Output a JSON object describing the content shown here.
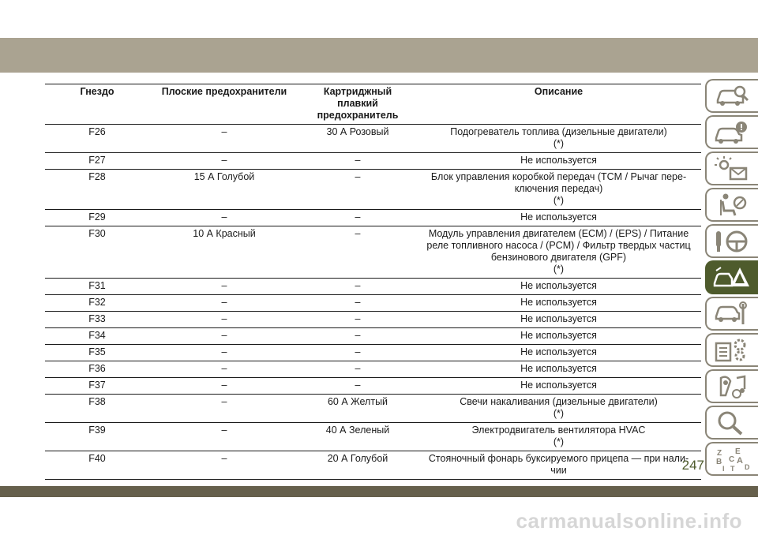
{
  "table": {
    "headers": [
      [
        "Гнездо"
      ],
      [
        "Плоские предохранители"
      ],
      [
        "Картриджный плавкий",
        "предохранитель"
      ],
      [
        "Описание"
      ]
    ],
    "rows": [
      {
        "slot": "F26",
        "flat": "–",
        "cartridge": "30 А Розовый",
        "description": [
          "Подогреватель топлива (дизельные двигатели)",
          "(*)"
        ]
      },
      {
        "slot": "F27",
        "flat": "–",
        "cartridge": "–",
        "description": [
          "Не используется"
        ]
      },
      {
        "slot": "F28",
        "flat": "15 А Голубой",
        "cartridge": "–",
        "description": [
          "Блок управления коробкой передач (TCM / Рычаг пере-",
          "ключения передач)",
          "(*)"
        ]
      },
      {
        "slot": "F29",
        "flat": "–",
        "cartridge": "–",
        "description": [
          "Не используется"
        ]
      },
      {
        "slot": "F30",
        "flat": "10 А Красный",
        "cartridge": "–",
        "description": [
          "Модуль управления двигателем (ECM) / (EPS) / Питание",
          "реле топливного насоса / (PCM) / Фильтр твердых частиц",
          "бензинового двигателя (GPF)",
          "(*)"
        ]
      },
      {
        "slot": "F31",
        "flat": "–",
        "cartridge": "–",
        "description": [
          "Не используется"
        ]
      },
      {
        "slot": "F32",
        "flat": "–",
        "cartridge": "–",
        "description": [
          "Не используется"
        ]
      },
      {
        "slot": "F33",
        "flat": "–",
        "cartridge": "–",
        "description": [
          "Не используется"
        ]
      },
      {
        "slot": "F34",
        "flat": "–",
        "cartridge": "–",
        "description": [
          "Не используется"
        ]
      },
      {
        "slot": "F35",
        "flat": "–",
        "cartridge": "–",
        "description": [
          "Не используется"
        ]
      },
      {
        "slot": "F36",
        "flat": "–",
        "cartridge": "–",
        "description": [
          "Не используется"
        ]
      },
      {
        "slot": "F37",
        "flat": "–",
        "cartridge": "–",
        "description": [
          "Не используется"
        ]
      },
      {
        "slot": "F38",
        "flat": "–",
        "cartridge": "60 А Желтый",
        "description": [
          "Свечи накаливания (дизельные двигатели)",
          "(*)"
        ]
      },
      {
        "slot": "F39",
        "flat": "–",
        "cartridge": "40 А Зеленый",
        "description": [
          "Электродвигатель вентилятора HVAC",
          "(*)"
        ]
      },
      {
        "slot": "F40",
        "flat": "–",
        "cartridge": "20 А Голубой",
        "description": [
          "Стояночный фонарь буксируемого прицепа — при нали-",
          "чии"
        ]
      }
    ]
  },
  "sidebar": {
    "tabs": [
      {
        "icon": "car-search-icon",
        "active": false
      },
      {
        "icon": "car-info-icon",
        "active": false
      },
      {
        "icon": "warning-lights-mail-icon",
        "active": false
      },
      {
        "icon": "seat-airbag-icon",
        "active": false
      },
      {
        "icon": "key-steering-wheel-icon",
        "active": false
      },
      {
        "icon": "car-hazard-warning-icon",
        "active": true
      },
      {
        "icon": "car-service-tools-icon",
        "active": false
      },
      {
        "icon": "specifications-gears-icon",
        "active": false
      },
      {
        "icon": "multimedia-music-nav-icon",
        "active": false
      },
      {
        "icon": "search-index-icon",
        "active": false
      },
      {
        "icon": "alphabet-index-icon",
        "active": false
      }
    ],
    "alphabet_letters": [
      "Z",
      "E",
      "B",
      "A",
      "C",
      "D",
      "I",
      "T"
    ]
  },
  "page_number": "247",
  "watermark": "carmanualsonline.info",
  "colors": {
    "top_band": "#aaa391",
    "bottom_band": "#66604c",
    "accent_green": "#4e5b2c",
    "tab_border": "#8a8577"
  }
}
